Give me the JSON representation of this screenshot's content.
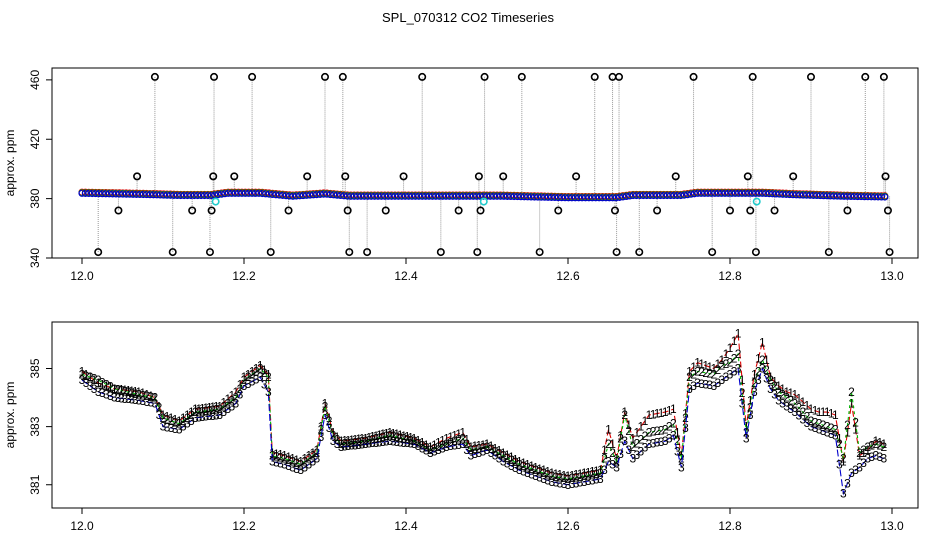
{
  "title": "SPL_070312  CO2 Timeseries",
  "colors": {
    "s1": "#dd0000",
    "s2": "#00bb00",
    "s3": "#0000cc",
    "marker": "#000000",
    "spike": "#999999",
    "cyan": "#22cccc"
  },
  "chart_data": [
    {
      "type": "scatter",
      "ylabel": "approx. ppm",
      "xlim": [
        12.0,
        13.0
      ],
      "ylim": [
        340,
        468
      ],
      "xticks": [
        "12.0",
        "12.2",
        "12.4",
        "12.6",
        "12.8",
        "13.0"
      ],
      "yticks": [
        "340",
        "380",
        "420",
        "460"
      ],
      "baseline": [
        [
          12.0,
          384
        ],
        [
          12.05,
          383.5
        ],
        [
          12.09,
          383
        ],
        [
          12.12,
          382.5
        ],
        [
          12.16,
          382.5
        ],
        [
          12.18,
          384
        ],
        [
          12.22,
          384
        ],
        [
          12.26,
          382
        ],
        [
          12.3,
          383.5
        ],
        [
          12.33,
          382
        ],
        [
          12.4,
          382
        ],
        [
          12.48,
          382
        ],
        [
          12.52,
          382
        ],
        [
          12.56,
          381.5
        ],
        [
          12.6,
          381
        ],
        [
          12.66,
          381
        ],
        [
          12.68,
          382.5
        ],
        [
          12.74,
          382.5
        ],
        [
          12.76,
          384
        ],
        [
          12.8,
          384
        ],
        [
          12.84,
          384
        ],
        [
          12.88,
          383
        ],
        [
          12.94,
          382
        ],
        [
          12.99,
          381.5
        ]
      ],
      "outlier_markers": [
        [
          12.02,
          344
        ],
        [
          12.045,
          372
        ],
        [
          12.068,
          395
        ],
        [
          12.09,
          462
        ],
        [
          12.112,
          344
        ],
        [
          12.136,
          372
        ],
        [
          12.158,
          344
        ],
        [
          12.16,
          372
        ],
        [
          12.162,
          395
        ],
        [
          12.163,
          462
        ],
        [
          12.188,
          395
        ],
        [
          12.21,
          462
        ],
        [
          12.233,
          344
        ],
        [
          12.255,
          372
        ],
        [
          12.278,
          395
        ],
        [
          12.3,
          462
        ],
        [
          12.322,
          462
        ],
        [
          12.325,
          395
        ],
        [
          12.328,
          372
        ],
        [
          12.33,
          344
        ],
        [
          12.352,
          344
        ],
        [
          12.375,
          372
        ],
        [
          12.397,
          395
        ],
        [
          12.42,
          462
        ],
        [
          12.443,
          344
        ],
        [
          12.465,
          372
        ],
        [
          12.488,
          344
        ],
        [
          12.49,
          395
        ],
        [
          12.492,
          372
        ],
        [
          12.497,
          462
        ],
        [
          12.52,
          395
        ],
        [
          12.543,
          462
        ],
        [
          12.565,
          344
        ],
        [
          12.588,
          372
        ],
        [
          12.61,
          395
        ],
        [
          12.633,
          462
        ],
        [
          12.655,
          462
        ],
        [
          12.658,
          372
        ],
        [
          12.66,
          344
        ],
        [
          12.663,
          462
        ],
        [
          12.688,
          344
        ],
        [
          12.71,
          372
        ],
        [
          12.733,
          395
        ],
        [
          12.755,
          462
        ],
        [
          12.778,
          344
        ],
        [
          12.8,
          372
        ],
        [
          12.822,
          395
        ],
        [
          12.825,
          372
        ],
        [
          12.828,
          462
        ],
        [
          12.832,
          344
        ],
        [
          12.855,
          372
        ],
        [
          12.878,
          395
        ],
        [
          12.9,
          462
        ],
        [
          12.922,
          344
        ],
        [
          12.945,
          372
        ],
        [
          12.967,
          462
        ],
        [
          12.99,
          462
        ],
        [
          12.992,
          395
        ],
        [
          12.995,
          372
        ],
        [
          12.997,
          344
        ]
      ],
      "cyan_markers": [
        [
          12.165,
          378
        ],
        [
          12.496,
          378
        ],
        [
          12.833,
          378
        ]
      ]
    },
    {
      "type": "line",
      "ylabel": "approx. ppm",
      "xlim": [
        12.0,
        13.0
      ],
      "ylim": [
        380.2,
        386.6
      ],
      "xticks": [
        "12.0",
        "12.2",
        "12.4",
        "12.6",
        "12.8",
        "13.0"
      ],
      "yticks": [
        "381",
        "383",
        "385"
      ],
      "series": [
        {
          "name": "1",
          "color": "#dd0000",
          "label": "1",
          "points": [
            [
              12.0,
              384.9
            ],
            [
              12.02,
              384.5
            ],
            [
              12.04,
              384.3
            ],
            [
              12.07,
              384.2
            ],
            [
              12.09,
              384.0
            ],
            [
              12.1,
              383.4
            ],
            [
              12.12,
              383.2
            ],
            [
              12.14,
              383.6
            ],
            [
              12.17,
              383.7
            ],
            [
              12.19,
              384.2
            ],
            [
              12.2,
              384.7
            ],
            [
              12.22,
              385.1
            ],
            [
              12.23,
              384.8
            ],
            [
              12.235,
              382.1
            ],
            [
              12.25,
              382.0
            ],
            [
              12.27,
              381.8
            ],
            [
              12.29,
              382.2
            ],
            [
              12.3,
              383.8
            ],
            [
              12.31,
              382.8
            ],
            [
              12.32,
              382.5
            ],
            [
              12.35,
              382.6
            ],
            [
              12.38,
              382.8
            ],
            [
              12.41,
              382.6
            ],
            [
              12.43,
              382.3
            ],
            [
              12.45,
              382.6
            ],
            [
              12.47,
              382.8
            ],
            [
              12.48,
              382.3
            ],
            [
              12.5,
              382.4
            ],
            [
              12.52,
              382.1
            ],
            [
              12.54,
              381.8
            ],
            [
              12.56,
              381.6
            ],
            [
              12.58,
              381.4
            ],
            [
              12.6,
              381.3
            ],
            [
              12.62,
              381.4
            ],
            [
              12.64,
              381.5
            ],
            [
              12.65,
              382.9
            ],
            [
              12.66,
              381.9
            ],
            [
              12.67,
              383.5
            ],
            [
              12.68,
              382.6
            ],
            [
              12.7,
              383.4
            ],
            [
              12.72,
              383.5
            ],
            [
              12.73,
              383.6
            ],
            [
              12.74,
              382.0
            ],
            [
              12.75,
              384.9
            ],
            [
              12.76,
              385.2
            ],
            [
              12.78,
              385.0
            ],
            [
              12.79,
              385.3
            ],
            [
              12.8,
              385.7
            ],
            [
              12.81,
              386.2
            ],
            [
              12.82,
              383.0
            ],
            [
              12.83,
              384.8
            ],
            [
              12.84,
              385.9
            ],
            [
              12.85,
              384.7
            ],
            [
              12.86,
              384.4
            ],
            [
              12.87,
              384.2
            ],
            [
              12.88,
              384.1
            ],
            [
              12.9,
              383.6
            ],
            [
              12.91,
              383.5
            ],
            [
              12.92,
              383.5
            ],
            [
              12.93,
              383.4
            ],
            [
              12.94,
              381.8
            ],
            [
              12.95,
              383.8
            ],
            [
              12.96,
              382.0
            ],
            [
              12.97,
              382.2
            ],
            [
              12.98,
              382.5
            ],
            [
              12.99,
              382.4
            ]
          ]
        },
        {
          "name": "2",
          "color": "#00bb00",
          "label": "2",
          "points": [
            [
              12.0,
              384.8
            ],
            [
              12.02,
              384.6
            ],
            [
              12.04,
              384.3
            ],
            [
              12.07,
              384.1
            ],
            [
              12.09,
              384.0
            ],
            [
              12.1,
              383.3
            ],
            [
              12.12,
              383.1
            ],
            [
              12.14,
              383.5
            ],
            [
              12.17,
              383.6
            ],
            [
              12.19,
              384.0
            ],
            [
              12.2,
              384.6
            ],
            [
              12.22,
              385.0
            ],
            [
              12.23,
              384.7
            ],
            [
              12.235,
              382.0
            ],
            [
              12.25,
              381.9
            ],
            [
              12.27,
              381.7
            ],
            [
              12.29,
              382.1
            ],
            [
              12.3,
              383.7
            ],
            [
              12.31,
              382.7
            ],
            [
              12.32,
              382.4
            ],
            [
              12.35,
              382.5
            ],
            [
              12.38,
              382.7
            ],
            [
              12.41,
              382.5
            ],
            [
              12.43,
              382.2
            ],
            [
              12.45,
              382.4
            ],
            [
              12.47,
              382.6
            ],
            [
              12.48,
              382.2
            ],
            [
              12.5,
              382.3
            ],
            [
              12.52,
              382.0
            ],
            [
              12.54,
              381.7
            ],
            [
              12.56,
              381.5
            ],
            [
              12.58,
              381.3
            ],
            [
              12.6,
              381.2
            ],
            [
              12.62,
              381.3
            ],
            [
              12.64,
              381.4
            ],
            [
              12.65,
              382.4
            ],
            [
              12.66,
              381.8
            ],
            [
              12.67,
              383.4
            ],
            [
              12.68,
              382.3
            ],
            [
              12.7,
              382.8
            ],
            [
              12.72,
              382.9
            ],
            [
              12.73,
              383.1
            ],
            [
              12.74,
              381.9
            ],
            [
              12.75,
              384.7
            ],
            [
              12.76,
              384.9
            ],
            [
              12.78,
              384.8
            ],
            [
              12.79,
              385.1
            ],
            [
              12.8,
              385.2
            ],
            [
              12.81,
              385.5
            ],
            [
              12.82,
              382.8
            ],
            [
              12.83,
              384.5
            ],
            [
              12.84,
              385.3
            ],
            [
              12.85,
              384.6
            ],
            [
              12.86,
              384.2
            ],
            [
              12.87,
              384.0
            ],
            [
              12.88,
              383.8
            ],
            [
              12.9,
              383.2
            ],
            [
              12.91,
              383.1
            ],
            [
              12.92,
              383.0
            ],
            [
              12.93,
              382.9
            ],
            [
              12.94,
              381.9
            ],
            [
              12.95,
              384.2
            ],
            [
              12.96,
              382.1
            ],
            [
              12.97,
              382.3
            ],
            [
              12.98,
              382.4
            ],
            [
              12.99,
              382.3
            ]
          ]
        },
        {
          "name": "3",
          "color": "#0000cc",
          "label": "3",
          "points": [
            [
              12.0,
              384.6
            ],
            [
              12.02,
              384.2
            ],
            [
              12.04,
              384.0
            ],
            [
              12.07,
              383.9
            ],
            [
              12.09,
              383.8
            ],
            [
              12.1,
              383.0
            ],
            [
              12.12,
              382.9
            ],
            [
              12.14,
              383.3
            ],
            [
              12.17,
              383.4
            ],
            [
              12.19,
              383.8
            ],
            [
              12.2,
              384.4
            ],
            [
              12.22,
              384.7
            ],
            [
              12.23,
              384.2
            ],
            [
              12.235,
              381.8
            ],
            [
              12.25,
              381.7
            ],
            [
              12.27,
              381.5
            ],
            [
              12.29,
              381.9
            ],
            [
              12.3,
              383.4
            ],
            [
              12.31,
              382.5
            ],
            [
              12.32,
              382.3
            ],
            [
              12.35,
              382.4
            ],
            [
              12.38,
              382.5
            ],
            [
              12.41,
              382.4
            ],
            [
              12.43,
              382.1
            ],
            [
              12.45,
              382.3
            ],
            [
              12.47,
              382.4
            ],
            [
              12.48,
              382.0
            ],
            [
              12.5,
              382.2
            ],
            [
              12.52,
              381.8
            ],
            [
              12.54,
              381.5
            ],
            [
              12.56,
              381.3
            ],
            [
              12.58,
              381.1
            ],
            [
              12.6,
              381.0
            ],
            [
              12.62,
              381.1
            ],
            [
              12.64,
              381.2
            ],
            [
              12.65,
              381.8
            ],
            [
              12.66,
              381.6
            ],
            [
              12.67,
              382.5
            ],
            [
              12.68,
              381.9
            ],
            [
              12.7,
              382.4
            ],
            [
              12.72,
              382.5
            ],
            [
              12.73,
              382.7
            ],
            [
              12.74,
              381.6
            ],
            [
              12.75,
              384.3
            ],
            [
              12.76,
              384.5
            ],
            [
              12.78,
              384.4
            ],
            [
              12.79,
              384.6
            ],
            [
              12.8,
              384.8
            ],
            [
              12.81,
              385.0
            ],
            [
              12.82,
              382.6
            ],
            [
              12.83,
              384.2
            ],
            [
              12.84,
              385.0
            ],
            [
              12.85,
              384.3
            ],
            [
              12.86,
              383.9
            ],
            [
              12.87,
              383.7
            ],
            [
              12.88,
              383.5
            ],
            [
              12.9,
              383.0
            ],
            [
              12.91,
              382.9
            ],
            [
              12.92,
              382.8
            ],
            [
              12.93,
              382.7
            ],
            [
              12.94,
              380.7
            ],
            [
              12.95,
              381.4
            ],
            [
              12.96,
              381.6
            ],
            [
              12.97,
              381.9
            ],
            [
              12.98,
              382.0
            ],
            [
              12.99,
              381.9
            ]
          ]
        }
      ]
    }
  ]
}
